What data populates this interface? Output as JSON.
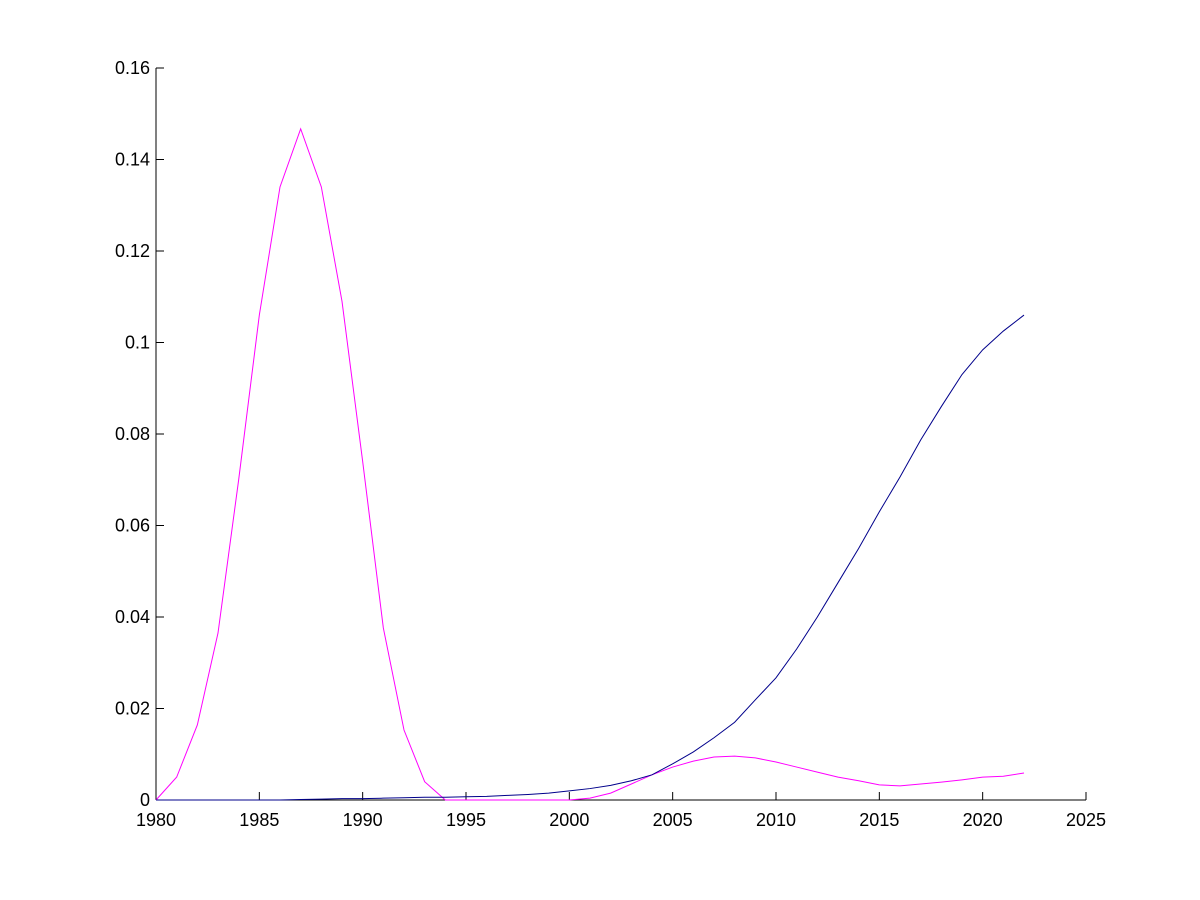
{
  "chart_data": {
    "type": "line",
    "x": [
      1980,
      1981,
      1982,
      1983,
      1984,
      1985,
      1986,
      1987,
      1988,
      1989,
      1990,
      1991,
      1992,
      1993,
      1994,
      1995,
      1996,
      1997,
      1998,
      1999,
      2000,
      2001,
      2002,
      2003,
      2004,
      2005,
      2006,
      2007,
      2008,
      2009,
      2010,
      2011,
      2012,
      2013,
      2014,
      2015,
      2016,
      2017,
      2018,
      2019,
      2020,
      2021,
      2022
    ],
    "series": [
      {
        "color": "#ff00ff",
        "values": [
          0,
          0.005,
          0.0164,
          0.0365,
          0.07,
          0.106,
          0.134,
          0.1467,
          0.134,
          0.109,
          0.074,
          0.0376,
          0.0153,
          0.004,
          0,
          0,
          0,
          0,
          0,
          0,
          0,
          0.0004,
          0.0015,
          0.0035,
          0.0055,
          0.0072,
          0.0085,
          0.0094,
          0.0096,
          0.0092,
          0.0083,
          0.0072,
          0.0061,
          0.005,
          0.0042,
          0.0033,
          0.0031,
          0.0035,
          0.0039,
          0.0044,
          0.005,
          0.0052,
          0.0059
        ]
      },
      {
        "color": "#00008b",
        "values": [
          0,
          0,
          0,
          0,
          0,
          0,
          0,
          0.0001,
          0.0002,
          0.0003,
          0.0003,
          0.0004,
          0.0005,
          0.0006,
          0.0006,
          0.0007,
          0.0008,
          0.001,
          0.0012,
          0.0015,
          0.002,
          0.0025,
          0.0032,
          0.0042,
          0.0055,
          0.0079,
          0.0105,
          0.0136,
          0.017,
          0.0219,
          0.0267,
          0.033,
          0.04,
          0.0475,
          0.055,
          0.063,
          0.0706,
          0.0787,
          0.086,
          0.093,
          0.0984,
          0.1025,
          0.106
        ]
      }
    ],
    "xlim": [
      1980,
      2025
    ],
    "xticks": [
      1980,
      1985,
      1990,
      1995,
      2000,
      2005,
      2010,
      2015,
      2020,
      2025
    ],
    "ylim": [
      0,
      0.16
    ],
    "yticks": [
      0,
      0.02,
      0.04,
      0.06,
      0.08,
      0.1,
      0.12,
      0.14,
      0.16
    ]
  }
}
